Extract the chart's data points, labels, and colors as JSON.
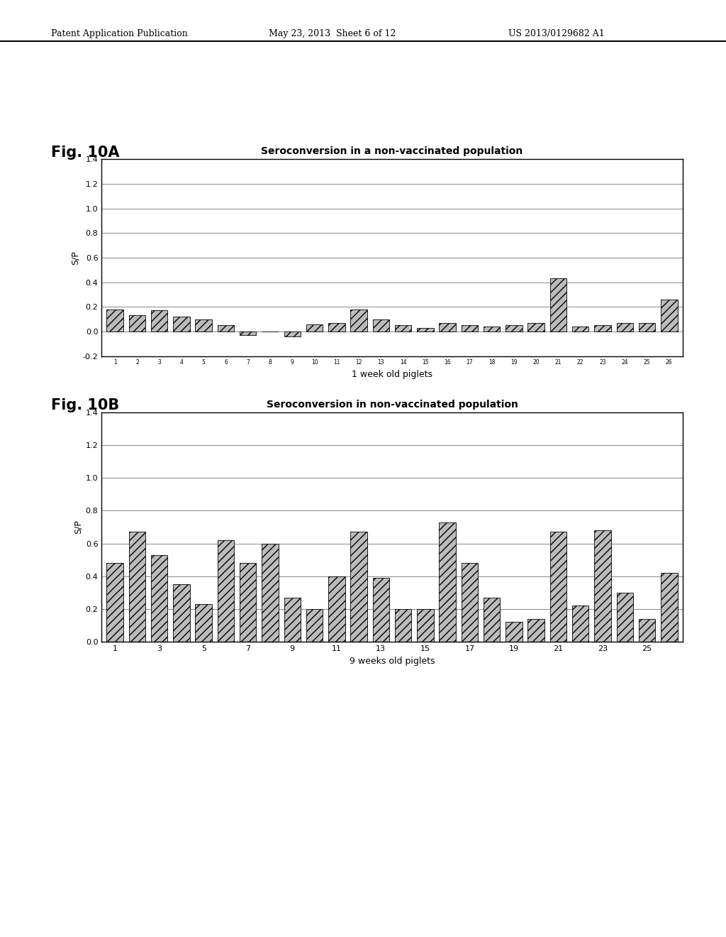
{
  "fig10a": {
    "title": "Seroconversion in a non-vaccinated population",
    "xlabel": "1 week old piglets",
    "ylabel": "S/P",
    "ylim": [
      -0.2,
      1.4
    ],
    "yticks": [
      -0.2,
      0.0,
      0.2,
      0.4,
      0.6,
      0.8,
      1.0,
      1.2,
      1.4
    ],
    "ytick_labels": [
      "-0.2",
      "0.0",
      "0.2",
      "0.4",
      "0.6",
      "0.8",
      "1.0",
      "1.2",
      "1.4"
    ],
    "categories": [
      "1",
      "2",
      "3",
      "4",
      "5",
      "6",
      "7",
      "8",
      "9",
      "10",
      "11",
      "12",
      "13",
      "14",
      "15",
      "16",
      "17",
      "18",
      "19",
      "20",
      "21",
      "22",
      "23",
      "24",
      "25",
      "26"
    ],
    "values": [
      0.18,
      0.13,
      0.17,
      0.12,
      0.1,
      0.05,
      -0.03,
      0.0,
      -0.04,
      0.06,
      0.07,
      0.18,
      0.1,
      0.05,
      0.03,
      0.07,
      0.05,
      0.04,
      0.05,
      0.07,
      0.43,
      0.04,
      0.05,
      0.07,
      0.07,
      0.26
    ]
  },
  "fig10b": {
    "title": "Seroconversion in non-vaccinated population",
    "xlabel": "9 weeks old piglets",
    "ylabel": "S/P",
    "ylim": [
      0.0,
      1.4
    ],
    "yticks": [
      0.0,
      0.2,
      0.4,
      0.6,
      0.8,
      1.0,
      1.2,
      1.4
    ],
    "ytick_labels": [
      "0.0",
      "0.2",
      "0.4",
      "0.6",
      "0.8",
      "1.0",
      "1.2",
      "1.4"
    ],
    "categories": [
      "1",
      "2",
      "3",
      "4",
      "5",
      "6",
      "7",
      "8",
      "9",
      "10",
      "11",
      "12",
      "13",
      "14",
      "15",
      "16",
      "17",
      "18",
      "19",
      "20",
      "21",
      "22",
      "23",
      "24",
      "25",
      "26"
    ],
    "values": [
      0.48,
      0.67,
      0.53,
      0.35,
      0.23,
      0.62,
      0.48,
      0.6,
      0.27,
      0.2,
      0.4,
      0.67,
      0.39,
      0.2,
      0.2,
      0.73,
      0.48,
      0.27,
      0.12,
      0.14,
      0.67,
      0.22,
      0.68,
      0.3,
      0.14,
      0.42
    ],
    "xtick_positions": [
      0,
      2,
      4,
      6,
      8,
      10,
      12,
      14,
      16,
      18,
      20,
      22,
      24
    ],
    "xtick_labels": [
      "1",
      "3",
      "5",
      "7",
      "9",
      "11",
      "13",
      "15",
      "17",
      "19",
      "21",
      "23",
      "25"
    ]
  },
  "background_color": "#ffffff",
  "header_left": "Patent Application Publication",
  "header_mid": "May 23, 2013  Sheet 6 of 12",
  "header_right": "US 2013/0129682 A1",
  "fig10a_label": "Fig. 10A",
  "fig10b_label": "Fig. 10B"
}
